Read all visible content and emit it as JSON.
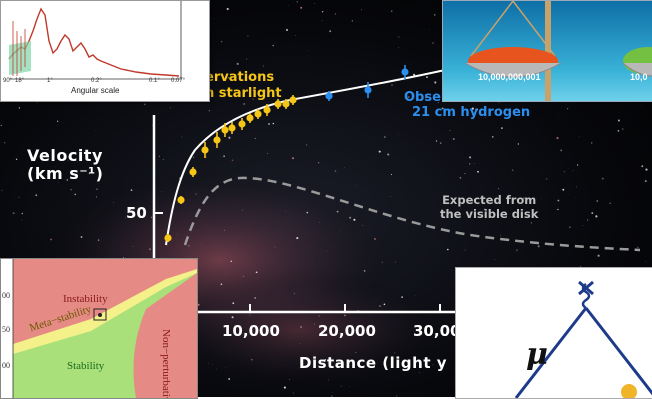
{
  "main_plot": {
    "y_axis_label_line1": "Velocity",
    "y_axis_label_line2": "(km s⁻¹)",
    "y_tick_50": "50",
    "x_ticks": [
      "10,000",
      "20,000",
      "30,00"
    ],
    "x_axis_label": "Distance (light y",
    "annotation_starlight_line1": "ervations",
    "annotation_starlight_line2": "n starlight",
    "annotation_hydrogen_line1": "Obser",
    "annotation_hydrogen_line2": "21 cm hydrogen",
    "annotation_expected_line1": "Expected from",
    "annotation_expected_line2": "the visible disk",
    "colors": {
      "starlight_points": "#f5c518",
      "hydrogen_points": "#2b8ff0",
      "fit_curve": "#ffffff",
      "expected_curve": "#9a9a9a"
    }
  },
  "inset_angular_scale": {
    "x_axis_label": "Angular scale",
    "x_ticks": [
      "90°",
      "18°",
      "1°",
      "0.2°",
      "0.1°",
      "0.07°"
    ]
  },
  "inset_balance": {
    "left_pan_label": "10,000,000,001",
    "right_pan_label": "10,0"
  },
  "inset_stability": {
    "region_instability": "Instability",
    "region_metastability": "Meta−stability",
    "region_stability": "Stability",
    "region_nonpert": "Non−perturbativ",
    "y_ticks": [
      "00",
      "50",
      "00"
    ]
  },
  "inset_feynman": {
    "symbol": "μ"
  }
}
